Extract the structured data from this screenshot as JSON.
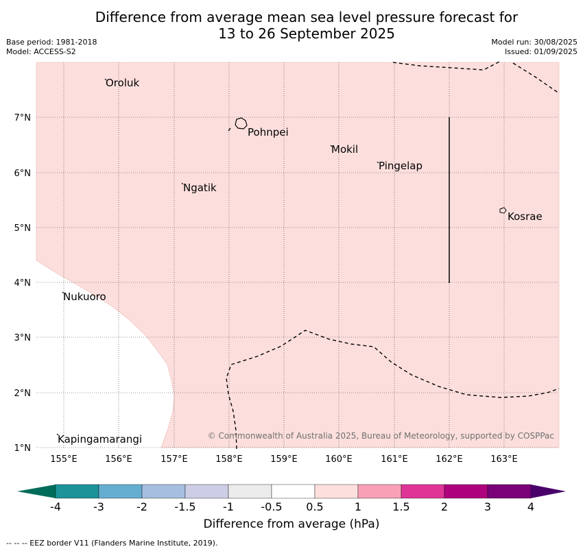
{
  "header": {
    "title_line1": "Difference from average mean sea level pressure forecast for",
    "title_line2": "13 to 26 September 2025",
    "base_period": "Base period: 1981-2018",
    "model": "Model: ACCESS-S2",
    "model_run": "Model run: 30/08/2025",
    "issued": "Issued: 01/09/2025"
  },
  "map": {
    "x_ticks": [
      "155°E",
      "156°E",
      "157°E",
      "158°E",
      "159°E",
      "160°E",
      "161°E",
      "162°E",
      "163°E"
    ],
    "y_ticks": [
      "1°N",
      "2°N",
      "3°N",
      "4°N",
      "5°N",
      "6°N",
      "7°N"
    ],
    "places": [
      {
        "name": "Oroluk"
      },
      {
        "name": "Pohnpei"
      },
      {
        "name": "Mokil"
      },
      {
        "name": "Pingelap"
      },
      {
        "name": "Ngatik"
      },
      {
        "name": "Kosrae"
      },
      {
        "name": "Nukuoro"
      },
      {
        "name": "Kapingamarangi"
      }
    ],
    "fill_color": "#fcdfdd",
    "attribution": "© Commonwealth of Australia 2025, Bureau of Meteorology, supported by COSPPac"
  },
  "colorbar": {
    "title": "Difference from average (hPa)",
    "labels": [
      "-4",
      "-3",
      "-2",
      "-1.5",
      "-1",
      "-0.5",
      "0.5",
      "1",
      "1.5",
      "2",
      "3",
      "4"
    ],
    "colors": [
      "#1c9399",
      "#65aed2",
      "#a6bedf",
      "#cdcde5",
      "#ececec",
      "#ffffff",
      "#fde0dd",
      "#f9a0b6",
      "#df3597",
      "#ae017e",
      "#7a0177"
    ],
    "low_color": "#016c59",
    "high_color": "#49006a"
  },
  "footer": {
    "legend_line": "--  --  -- EEZ border V11 (Flanders Marine Institute, 2019)."
  }
}
